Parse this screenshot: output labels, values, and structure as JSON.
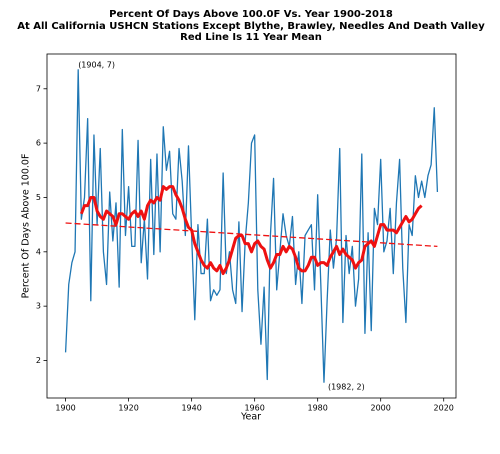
{
  "chart_data": {
    "type": "line",
    "title_lines": [
      "Percent Of Days Above 100.0F Vs. Year 1900-2018",
      "At All California USHCN Stations Except Blythe, Brawley, Needles And Death Valley",
      "Red Line Is 11 Year Mean"
    ],
    "x_label": "Year",
    "y_label": "Percent Of Days Above 100.0F",
    "x": [
      1900,
      1901,
      1902,
      1903,
      1904,
      1905,
      1906,
      1907,
      1908,
      1909,
      1910,
      1911,
      1912,
      1913,
      1914,
      1915,
      1916,
      1917,
      1918,
      1919,
      1920,
      1921,
      1922,
      1923,
      1924,
      1925,
      1926,
      1927,
      1928,
      1929,
      1930,
      1931,
      1932,
      1933,
      1934,
      1935,
      1936,
      1937,
      1938,
      1939,
      1940,
      1941,
      1942,
      1943,
      1944,
      1945,
      1946,
      1947,
      1948,
      1949,
      1950,
      1951,
      1952,
      1953,
      1954,
      1955,
      1956,
      1957,
      1958,
      1959,
      1960,
      1961,
      1962,
      1963,
      1964,
      1965,
      1966,
      1967,
      1968,
      1969,
      1970,
      1971,
      1972,
      1973,
      1974,
      1975,
      1976,
      1977,
      1978,
      1979,
      1980,
      1981,
      1982,
      1983,
      1984,
      1985,
      1986,
      1987,
      1988,
      1989,
      1990,
      1991,
      1992,
      1993,
      1994,
      1995,
      1996,
      1997,
      1998,
      1999,
      2000,
      2001,
      2002,
      2003,
      2004,
      2005,
      2006,
      2007,
      2008,
      2009,
      2010,
      2011,
      2012,
      2013,
      2014,
      2015,
      2016,
      2017,
      2018
    ],
    "series": [
      {
        "color": "#1f77b4",
        "width": 1.3,
        "values": [
          2.15,
          3.4,
          3.8,
          4.0,
          7.35,
          4.6,
          5.0,
          6.45,
          3.1,
          6.15,
          4.5,
          5.9,
          4.0,
          3.4,
          5.1,
          4.2,
          4.9,
          3.35,
          6.25,
          4.3,
          5.2,
          4.1,
          4.1,
          6.05,
          3.8,
          4.6,
          3.5,
          5.7,
          3.95,
          5.8,
          4.0,
          6.3,
          5.5,
          5.85,
          4.7,
          4.6,
          5.9,
          5.3,
          4.3,
          5.95,
          4.3,
          2.75,
          4.5,
          3.6,
          3.6,
          4.6,
          3.1,
          3.3,
          3.2,
          3.3,
          5.45,
          3.6,
          4.0,
          3.3,
          3.05,
          4.55,
          2.9,
          4.2,
          4.9,
          6.0,
          6.15,
          3.3,
          2.3,
          3.35,
          1.65,
          4.3,
          5.35,
          3.3,
          4.0,
          4.7,
          4.3,
          4.1,
          4.65,
          3.4,
          4.0,
          3.05,
          4.3,
          4.4,
          4.5,
          3.3,
          5.05,
          3.4,
          1.6,
          3.1,
          4.4,
          3.7,
          4.25,
          5.9,
          2.7,
          4.3,
          3.6,
          4.1,
          3.0,
          3.5,
          5.8,
          2.5,
          4.35,
          2.55,
          4.8,
          4.5,
          5.7,
          4.0,
          4.2,
          4.8,
          3.6,
          4.9,
          5.7,
          3.7,
          2.7,
          4.5,
          4.3,
          5.4,
          5.0,
          5.3,
          5.0,
          5.4,
          5.6,
          6.65,
          5.1
        ]
      },
      {
        "color": "#ee1111",
        "width": 3,
        "values": [
          null,
          null,
          null,
          null,
          null,
          4.7,
          4.85,
          4.85,
          5.0,
          5.0,
          4.75,
          4.65,
          4.6,
          4.75,
          4.7,
          4.65,
          4.5,
          4.7,
          4.7,
          4.65,
          4.6,
          4.7,
          4.75,
          4.65,
          4.75,
          4.6,
          4.85,
          4.95,
          4.9,
          5.0,
          4.95,
          5.2,
          5.15,
          5.2,
          5.2,
          5.05,
          4.95,
          4.8,
          4.6,
          4.45,
          4.4,
          4.15,
          4.0,
          3.85,
          3.75,
          3.7,
          3.8,
          3.7,
          3.65,
          3.75,
          3.6,
          3.7,
          3.85,
          4.05,
          4.25,
          4.3,
          4.3,
          4.15,
          4.15,
          4.0,
          4.15,
          4.2,
          4.1,
          4.05,
          3.85,
          3.7,
          3.8,
          3.95,
          3.95,
          4.1,
          4.0,
          4.1,
          4.05,
          3.9,
          3.7,
          3.65,
          3.65,
          3.75,
          3.9,
          3.9,
          3.75,
          3.8,
          3.8,
          3.75,
          3.9,
          4.0,
          4.1,
          3.95,
          4.05,
          3.95,
          3.9,
          3.85,
          3.7,
          3.8,
          3.85,
          4.1,
          4.15,
          4.2,
          4.1,
          4.3,
          4.5,
          4.5,
          4.4,
          4.4,
          4.4,
          4.35,
          4.45,
          4.55,
          4.65,
          4.55,
          4.6,
          4.7,
          4.8,
          4.85,
          null,
          null,
          null,
          null,
          null
        ]
      }
    ],
    "trend_line": {
      "x": [
        1900,
        2018
      ],
      "values": [
        4.53,
        4.1
      ],
      "color": "#ee1111",
      "dashed": true
    },
    "annotations": [
      "(1904, 7)",
      "(1982, 2)"
    ],
    "xlim": [
      1894.1,
      2023.9
    ],
    "ylim": [
      1.31,
      7.64
    ],
    "xticks": [
      1900,
      1920,
      1940,
      1960,
      1980,
      2000,
      2020
    ],
    "yticks": [
      2,
      3,
      4,
      5,
      6,
      7
    ]
  }
}
